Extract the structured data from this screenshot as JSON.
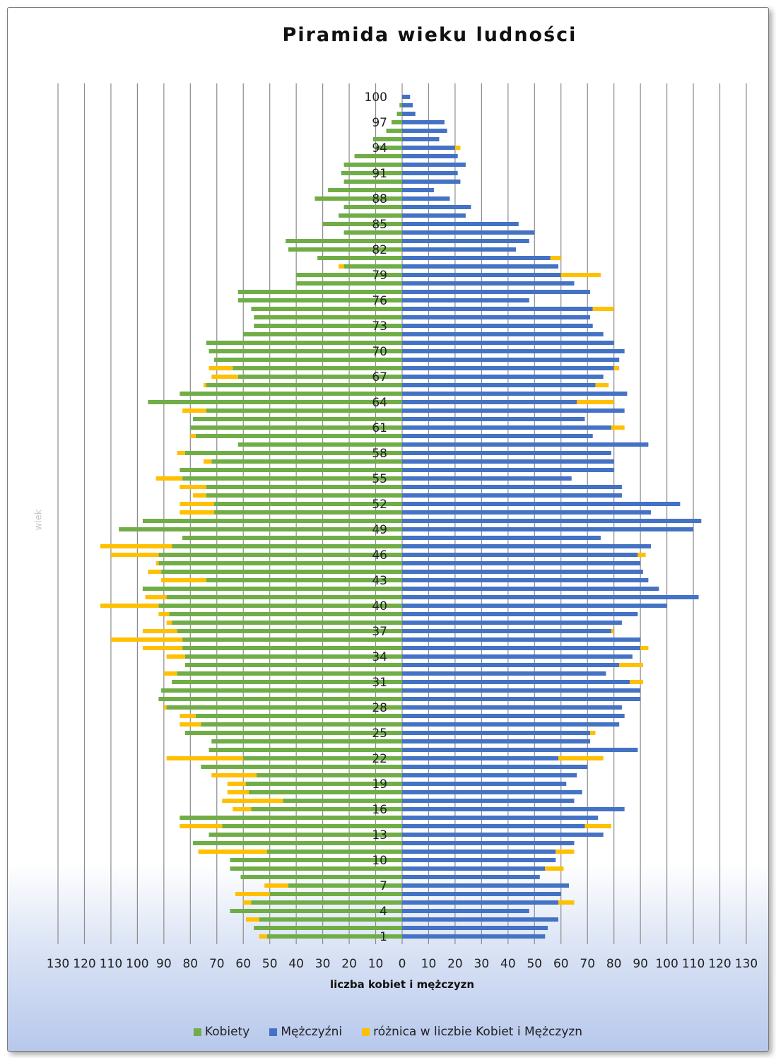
{
  "chart_data": {
    "type": "bar",
    "title": "Piramida wieku ludności",
    "xlabel": "liczba kobiet i mężczyzn",
    "ylabel": "wiek",
    "xlim": [
      -130,
      130
    ],
    "x_ticks": [
      130,
      120,
      110,
      100,
      90,
      80,
      70,
      60,
      50,
      40,
      30,
      20,
      10,
      0,
      10,
      20,
      30,
      40,
      50,
      60,
      70,
      80,
      90,
      100,
      110,
      120,
      130
    ],
    "y_tick_labels": [
      "100",
      "97",
      "94",
      "91",
      "88",
      "85",
      "82",
      "79",
      "76",
      "73",
      "70",
      "67",
      "64",
      "61",
      "58",
      "55",
      "52",
      "49",
      "46",
      "43",
      "40",
      "37",
      "34",
      "31",
      "28",
      "25",
      "22",
      "19",
      "16",
      "13",
      "10",
      "7",
      "4",
      "1"
    ],
    "grid": "vertical",
    "legend_position": "bottom",
    "ages": [
      1,
      2,
      3,
      4,
      5,
      6,
      7,
      8,
      9,
      10,
      11,
      12,
      13,
      14,
      15,
      16,
      17,
      18,
      19,
      20,
      21,
      22,
      23,
      24,
      25,
      26,
      27,
      28,
      29,
      30,
      31,
      32,
      33,
      34,
      35,
      36,
      37,
      38,
      39,
      40,
      41,
      42,
      43,
      44,
      45,
      46,
      47,
      48,
      49,
      50,
      51,
      52,
      53,
      54,
      55,
      56,
      57,
      58,
      59,
      60,
      61,
      62,
      63,
      64,
      65,
      66,
      67,
      68,
      69,
      70,
      71,
      72,
      73,
      74,
      75,
      76,
      77,
      78,
      79,
      80,
      81,
      82,
      83,
      84,
      85,
      86,
      87,
      88,
      89,
      90,
      91,
      92,
      93,
      94,
      95,
      96,
      97,
      98,
      99,
      100
    ],
    "series": [
      {
        "name": "Kobiety",
        "color": "#70ad47",
        "values": [
          51,
          56,
          54,
          65,
          57,
          50,
          43,
          61,
          65,
          65,
          51,
          79,
          73,
          68,
          84,
          57,
          45,
          58,
          59,
          55,
          76,
          60,
          73,
          72,
          82,
          76,
          78,
          89,
          92,
          91,
          87,
          85,
          82,
          82,
          83,
          83,
          85,
          87,
          88,
          92,
          89,
          98,
          74,
          91,
          92,
          92,
          87,
          83,
          107,
          98,
          71,
          71,
          74,
          74,
          83,
          84,
          72,
          82,
          62,
          78,
          80,
          79,
          74,
          96,
          84,
          74,
          62,
          64,
          71,
          73,
          74,
          60,
          56,
          56,
          57,
          62,
          62,
          40,
          40,
          22,
          32,
          43,
          44,
          22,
          30,
          24,
          22,
          33,
          28,
          22,
          23,
          22,
          18,
          10,
          11,
          6,
          4,
          2,
          1,
          0
        ],
        "totals": [
          54,
          56,
          59,
          65,
          60,
          63,
          52,
          61,
          65,
          65,
          77,
          79,
          73,
          84,
          84,
          64,
          68,
          66,
          66,
          72,
          76,
          89,
          73,
          72,
          82,
          84,
          84,
          90,
          92,
          91,
          87,
          90,
          82,
          89,
          98,
          110,
          98,
          89,
          92,
          114,
          97,
          97,
          91,
          96,
          93,
          110,
          114,
          83,
          107,
          83,
          84,
          84,
          79,
          84,
          93,
          84,
          75,
          85,
          62,
          80,
          80,
          79,
          83,
          96,
          84,
          75,
          72,
          73,
          71,
          73,
          74,
          60,
          56,
          56,
          57,
          62,
          62,
          40,
          40,
          24,
          32,
          43,
          44,
          22,
          30,
          24,
          22,
          33,
          28,
          22,
          23,
          22,
          18,
          10,
          11,
          6,
          4,
          2,
          1,
          0
        ]
      },
      {
        "name": "Mężczyźni",
        "color": "#4472c4",
        "values": [
          54,
          55,
          59,
          48,
          59,
          60,
          63,
          52,
          54,
          58,
          58,
          65,
          76,
          69,
          74,
          84,
          65,
          68,
          62,
          66,
          70,
          59,
          89,
          71,
          71,
          82,
          84,
          83,
          90,
          90,
          86,
          77,
          82,
          87,
          90,
          90,
          79,
          83,
          89,
          100,
          112,
          97,
          93,
          91,
          90,
          89,
          94,
          75,
          110,
          113,
          94,
          105,
          83,
          83,
          64,
          80,
          80,
          79,
          93,
          72,
          79,
          69,
          84,
          66,
          85,
          73,
          76,
          80,
          82,
          84,
          80,
          76,
          72,
          71,
          72,
          48,
          71,
          65,
          60,
          59,
          56,
          43,
          48,
          50,
          44,
          24,
          26,
          18,
          12,
          22,
          21,
          24,
          21,
          20,
          14,
          17,
          16,
          5,
          4,
          3
        ],
        "totals": [
          54,
          55,
          59,
          48,
          65,
          60,
          63,
          52,
          61,
          58,
          65,
          65,
          76,
          79,
          74,
          84,
          65,
          68,
          62,
          66,
          70,
          76,
          89,
          71,
          73,
          82,
          84,
          83,
          90,
          90,
          91,
          77,
          91,
          87,
          93,
          90,
          80,
          83,
          89,
          100,
          112,
          97,
          93,
          91,
          90,
          92,
          94,
          75,
          110,
          113,
          94,
          105,
          83,
          83,
          64,
          80,
          80,
          79,
          93,
          72,
          84,
          69,
          84,
          80,
          85,
          78,
          76,
          82,
          82,
          84,
          80,
          76,
          72,
          71,
          80,
          48,
          71,
          65,
          75,
          59,
          60,
          43,
          48,
          50,
          44,
          24,
          26,
          18,
          12,
          22,
          21,
          24,
          21,
          22,
          14,
          17,
          16,
          5,
          4,
          3
        ]
      },
      {
        "name": "różnica w liczbie Kobiet i Mężczyzn",
        "color": "#ffc000"
      }
    ]
  }
}
